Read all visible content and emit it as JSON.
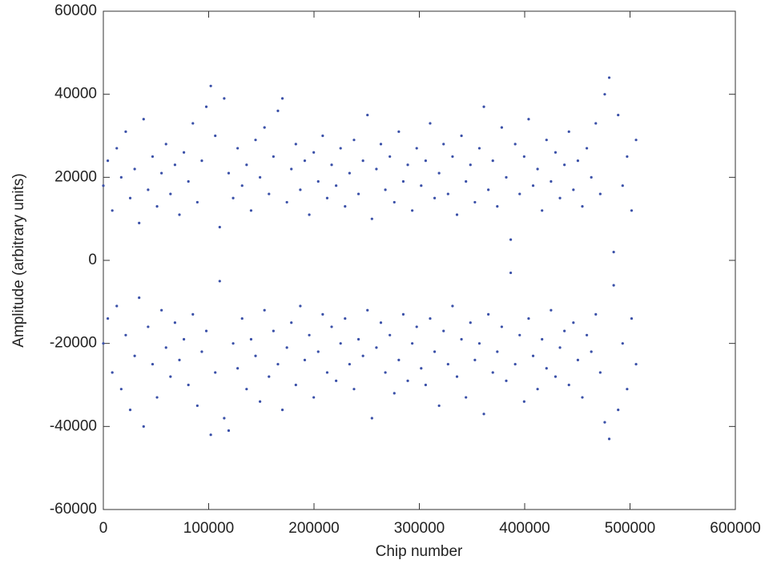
{
  "chart_data": {
    "type": "scatter",
    "xlabel": "Chip number",
    "ylabel": "Amplitude (arbitrary units)",
    "xlim": [
      0,
      600000
    ],
    "ylim": [
      -60000,
      60000
    ],
    "xticks": [
      0,
      100000,
      200000,
      300000,
      400000,
      500000,
      600000
    ],
    "yticks": [
      -60000,
      -40000,
      -20000,
      0,
      20000,
      40000,
      60000
    ],
    "grid": false,
    "x": [
      0,
      4250,
      8500,
      12750,
      17000,
      21250,
      25500,
      29750,
      34000,
      38250,
      42500,
      46750,
      51000,
      55250,
      59500,
      63750,
      68000,
      72250,
      76500,
      80750,
      85000,
      89250,
      93500,
      97750,
      102000,
      106250,
      110500,
      114750,
      119000,
      123250,
      127500,
      131750,
      136000,
      140250,
      144500,
      148750,
      153000,
      157250,
      161500,
      165750,
      170000,
      174250,
      178500,
      182750,
      187000,
      191250,
      195500,
      199750,
      204000,
      208250,
      212500,
      216750,
      221000,
      225250,
      229500,
      233750,
      238000,
      242250,
      246500,
      250750,
      255000,
      259250,
      263500,
      267750,
      272000,
      276250,
      280500,
      284750,
      289000,
      293250,
      297500,
      301750,
      306000,
      310250,
      314500,
      318750,
      323000,
      327250,
      331500,
      335750,
      340000,
      344250,
      348500,
      352750,
      357000,
      361250,
      365500,
      369750,
      374000,
      378250,
      382500,
      386750,
      391000,
      395250,
      399500,
      403750,
      408000,
      412250,
      416500,
      420750,
      425000,
      429250,
      433500,
      437750,
      442000,
      446250,
      450500,
      454750,
      459000,
      463250,
      467500,
      471750,
      476000,
      480250,
      484500,
      488750,
      493000,
      497250,
      501500,
      505750
    ],
    "series": [
      {
        "color": "#3a50a8",
        "values": [
          18000,
          24000,
          12000,
          27000,
          20000,
          31000,
          15000,
          22000,
          9000,
          34000,
          17000,
          25000,
          13000,
          21000,
          28000,
          16000,
          23000,
          11000,
          26000,
          19000,
          33000,
          14000,
          24000,
          37000,
          42000,
          30000,
          8000,
          39000,
          21000,
          15000,
          27000,
          18000,
          23000,
          12000,
          29000,
          20000,
          32000,
          16000,
          25000,
          36000,
          39000,
          14000,
          22000,
          28000,
          17000,
          24000,
          11000,
          26000,
          19000,
          30000,
          15000,
          23000,
          18000,
          27000,
          13000,
          21000,
          29000,
          16000,
          24000,
          35000,
          10000,
          22000,
          28000,
          17000,
          25000,
          14000,
          31000,
          19000,
          23000,
          12000,
          27000,
          18000,
          24000,
          33000,
          15000,
          21000,
          28000,
          16000,
          25000,
          11000,
          30000,
          19000,
          23000,
          14000,
          27000,
          37000,
          17000,
          24000,
          13000,
          32000,
          20000,
          5000,
          28000,
          16000,
          25000,
          34000,
          18000,
          22000,
          12000,
          29000,
          19000,
          26000,
          15000,
          23000,
          31000,
          17000,
          24000,
          13000,
          27000,
          20000,
          33000,
          16000,
          40000,
          44000,
          2000,
          35000,
          18000,
          25000,
          12000,
          29000
        ]
      },
      {
        "color": "#3a50a8",
        "values": [
          -20000,
          -14000,
          -27000,
          -11000,
          -31000,
          -18000,
          -36000,
          -23000,
          -9000,
          -40000,
          -16000,
          -25000,
          -33000,
          -12000,
          -21000,
          -28000,
          -15000,
          -24000,
          -19000,
          -30000,
          -13000,
          -35000,
          -22000,
          -17000,
          -42000,
          -27000,
          -5000,
          -38000,
          -41000,
          -20000,
          -26000,
          -14000,
          -31000,
          -19000,
          -23000,
          -34000,
          -12000,
          -28000,
          -17000,
          -25000,
          -36000,
          -21000,
          -15000,
          -30000,
          -11000,
          -24000,
          -18000,
          -33000,
          -22000,
          -13000,
          -27000,
          -16000,
          -29000,
          -20000,
          -14000,
          -25000,
          -31000,
          -19000,
          -23000,
          -12000,
          -38000,
          -21000,
          -15000,
          -27000,
          -18000,
          -32000,
          -24000,
          -13000,
          -29000,
          -20000,
          -16000,
          -26000,
          -30000,
          -14000,
          -22000,
          -35000,
          -17000,
          -25000,
          -11000,
          -28000,
          -19000,
          -33000,
          -15000,
          -24000,
          -20000,
          -37000,
          -13000,
          -27000,
          -22000,
          -16000,
          -29000,
          -3000,
          -25000,
          -18000,
          -34000,
          -14000,
          -23000,
          -31000,
          -19000,
          -26000,
          -12000,
          -28000,
          -21000,
          -17000,
          -30000,
          -15000,
          -24000,
          -33000,
          -18000,
          -22000,
          -13000,
          -27000,
          -39000,
          -43000,
          -6000,
          -36000,
          -20000,
          -31000,
          -14000,
          -25000
        ]
      }
    ]
  }
}
